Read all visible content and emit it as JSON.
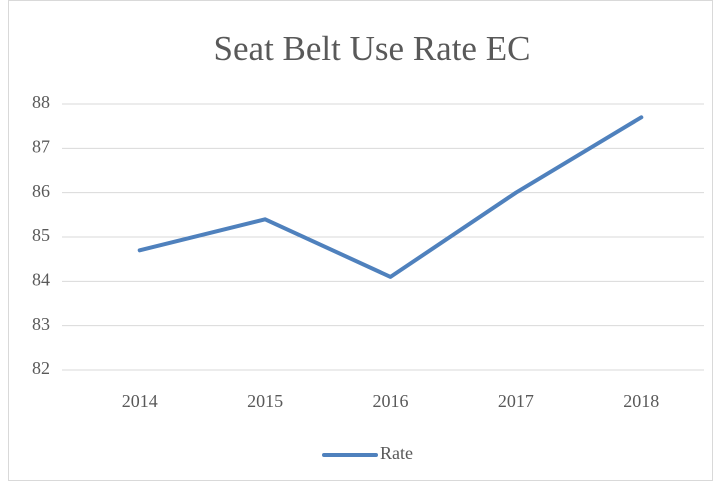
{
  "chart_data": {
    "type": "line",
    "title": "Seat Belt Use Rate EC",
    "categories": [
      "2014",
      "2015",
      "2016",
      "2017",
      "2018"
    ],
    "series": [
      {
        "name": "Rate",
        "color": "#4f81bd",
        "values": [
          84.7,
          85.4,
          84.1,
          86.0,
          87.7
        ]
      }
    ],
    "ylim": [
      82,
      88
    ],
    "yticks": [
      82,
      83,
      84,
      85,
      86,
      87,
      88
    ],
    "grid": true,
    "legend": "bottom"
  }
}
